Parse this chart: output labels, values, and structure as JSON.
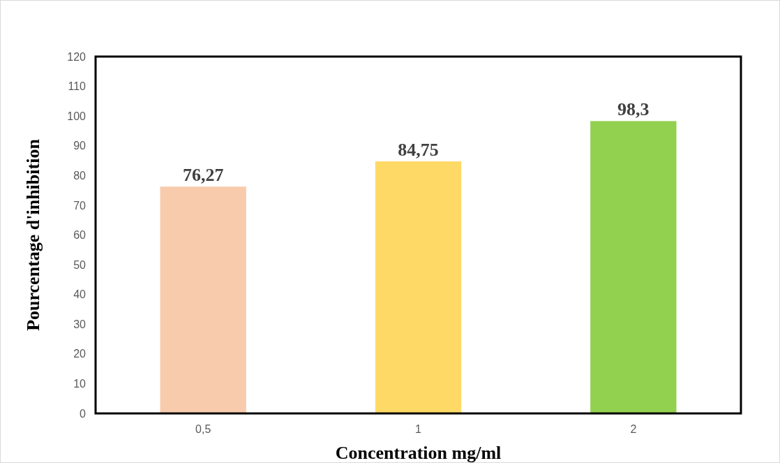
{
  "chart_data": {
    "type": "bar",
    "xlabel": "Concentration mg/ml",
    "ylabel": "Pourcentage d'inhibition",
    "categories": [
      "0,5",
      "1",
      "2"
    ],
    "values": [
      76.27,
      84.75,
      98.3
    ],
    "colors": [
      "#f8cbad",
      "#ffd966",
      "#92d050"
    ],
    "value_labels": [
      "76,27",
      "84,75",
      "98,3"
    ],
    "ylim": [
      0,
      120
    ],
    "yticks": [
      0,
      10,
      20,
      30,
      40,
      50,
      60,
      70,
      80,
      90,
      100,
      110,
      120
    ],
    "grid": false
  }
}
